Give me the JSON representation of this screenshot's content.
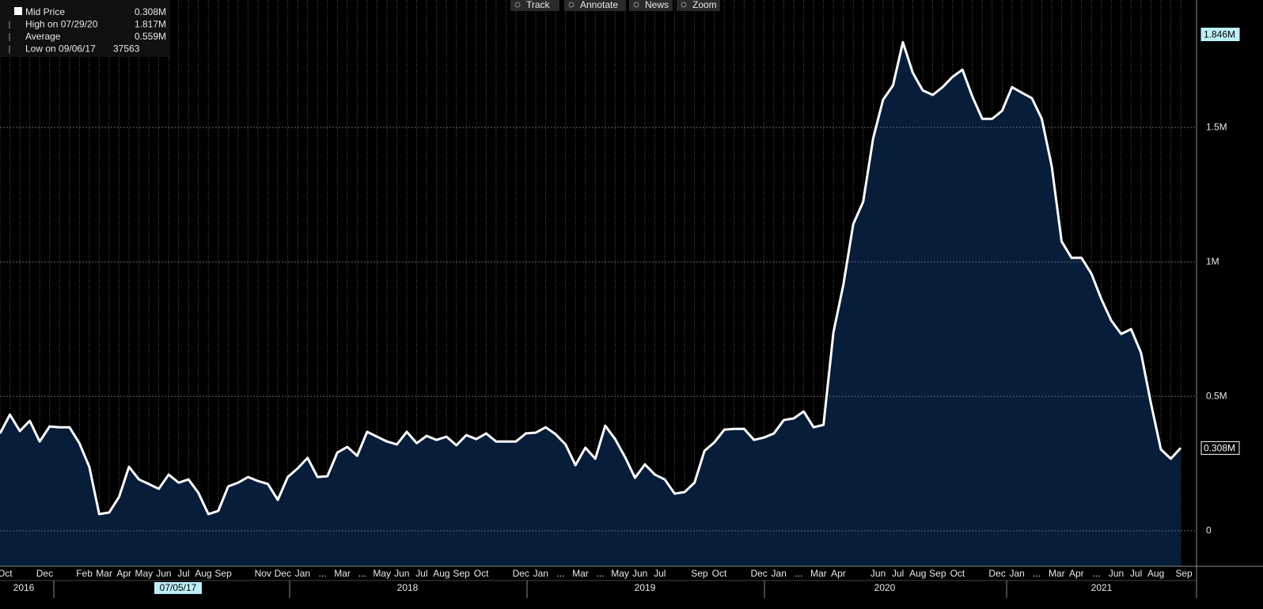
{
  "chart_data": {
    "type": "area",
    "toolbar": [
      "Track",
      "Annotate",
      "News",
      "Zoom"
    ],
    "legend_rows": [
      {
        "label": "Mid Price",
        "value": "0.308M"
      },
      {
        "label": "High on 07/29/20",
        "value": "1.817M"
      },
      {
        "label": "Average",
        "value": "0.559M"
      },
      {
        "label": "Low on 09/06/17",
        "value": "37563"
      }
    ],
    "categories": [
      null,
      "Oct",
      null,
      null,
      null,
      "Dec",
      null,
      null,
      null,
      "Feb",
      null,
      "Mar",
      null,
      "Apr",
      null,
      "May",
      null,
      "Jun",
      null,
      "Jul",
      null,
      "Aug",
      null,
      "Sep",
      null,
      null,
      null,
      "Nov",
      null,
      "Dec",
      null,
      "Jan",
      null,
      "...",
      null,
      "Mar",
      null,
      "...",
      null,
      "May",
      null,
      "Jun",
      null,
      "Jul",
      null,
      "Aug",
      null,
      "Sep",
      null,
      "Oct",
      null,
      null,
      null,
      "Dec",
      null,
      "Jan",
      null,
      "...",
      null,
      "Mar",
      null,
      "...",
      null,
      "May",
      null,
      "Jun",
      null,
      "Jul",
      null,
      null,
      null,
      "Sep",
      null,
      "Oct",
      null,
      null,
      null,
      "Dec",
      null,
      "Jan",
      null,
      "...",
      null,
      "Mar",
      null,
      "Apr",
      null,
      null,
      null,
      "Jun",
      null,
      "Jul",
      null,
      "Aug",
      null,
      "Sep",
      null,
      "Oct",
      null,
      null,
      null,
      "Dec",
      null,
      "Jan",
      null,
      "...",
      null,
      "Mar",
      null,
      "Apr",
      null,
      "...",
      null,
      "Jun",
      null,
      "Jul",
      null,
      "Aug",
      null,
      "Sep"
    ],
    "year_labels": [
      "2016",
      "07/05/17",
      "2018",
      "2019",
      "2020",
      "2021"
    ],
    "series": [
      {
        "name": "Mid Price",
        "color": "#ffffff",
        "fill": "#071d3a",
        "values": [
          0.362,
          0.432,
          0.371,
          0.409,
          0.332,
          0.388,
          0.385,
          0.385,
          0.326,
          0.238,
          0.062,
          0.068,
          0.126,
          0.238,
          0.191,
          0.174,
          0.156,
          0.209,
          0.179,
          0.191,
          0.141,
          0.062,
          0.074,
          0.165,
          0.179,
          0.2,
          0.185,
          0.174,
          0.115,
          0.2,
          0.232,
          0.271,
          0.2,
          0.203,
          0.291,
          0.312,
          0.279,
          0.368,
          0.35,
          0.332,
          0.321,
          0.368,
          0.326,
          0.353,
          0.338,
          0.35,
          0.318,
          0.356,
          0.341,
          0.362,
          0.332,
          0.332,
          0.332,
          0.362,
          0.365,
          0.385,
          0.359,
          0.321,
          0.244,
          0.309,
          0.268,
          0.391,
          0.341,
          0.274,
          0.197,
          0.247,
          0.209,
          0.191,
          0.138,
          0.144,
          0.179,
          0.297,
          0.329,
          0.376,
          0.379,
          0.379,
          0.338,
          0.347,
          0.362,
          0.412,
          0.418,
          0.444,
          0.385,
          0.394,
          0.738,
          0.915,
          1.141,
          1.224,
          1.459,
          1.603,
          1.656,
          1.817,
          1.703,
          1.638,
          1.621,
          1.65,
          1.688,
          1.715,
          1.615,
          1.532,
          1.532,
          1.562,
          1.65,
          1.629,
          1.609,
          1.532,
          1.356,
          1.076,
          1.015,
          1.015,
          0.956,
          0.862,
          0.782,
          0.732,
          0.75,
          0.662,
          0.474,
          0.303,
          0.268,
          0.308
        ]
      }
    ],
    "ylim": [
      -0.132,
      1.974
    ],
    "yticks": [
      0,
      {
        "value": 0.5,
        "label": "0.5M"
      },
      {
        "value": 1,
        "label": "1M"
      },
      {
        "value": 1.5,
        "label": "1.5M"
      }
    ],
    "annotations": [
      {
        "value": 1.846,
        "label": "1.846M",
        "color": "#bdeff8"
      },
      {
        "value": 0.308,
        "label": "0.308M",
        "color": "#ffffff"
      }
    ],
    "grid": true
  }
}
